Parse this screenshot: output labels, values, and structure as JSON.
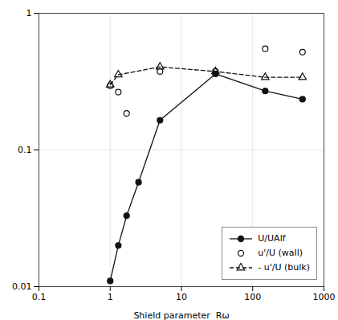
{
  "chart_data": {
    "type": "line",
    "xlabel": "Shield parameter  Rω",
    "log": true,
    "xlim": [
      0.1,
      1000
    ],
    "ylim": [
      0.01,
      1
    ],
    "xticks": [
      0.1,
      1,
      10,
      100,
      1000
    ],
    "yticks": [
      0.01,
      0.1,
      1
    ],
    "grid": true,
    "legend": "lower right",
    "series": [
      {
        "name": "U/UAlf",
        "type": "line",
        "color": "#111111",
        "marker": "circle",
        "line_style": "solid",
        "x": [
          1.0,
          1.3,
          1.7,
          2.5,
          5.0,
          30.0,
          150.0,
          500.0
        ],
        "values": [
          0.011,
          0.02,
          0.033,
          0.058,
          0.165,
          0.36,
          0.27,
          0.235
        ]
      },
      {
        "name": "u'/U (wall)",
        "type": "scatter",
        "color": "#111111",
        "marker": "open-circle",
        "line_style": "none",
        "x": [
          1.0,
          1.3,
          1.7,
          5.0,
          30.0,
          150.0,
          500.0
        ],
        "values": [
          0.295,
          0.265,
          0.185,
          0.375,
          0.375,
          0.55,
          0.52
        ]
      },
      {
        "name": "- u'/U (bulk)",
        "type": "line",
        "color": "#111111",
        "marker": "open-triangle",
        "line_style": "dashed",
        "x": [
          1.0,
          1.3,
          5.0,
          30.0,
          150.0,
          500.0
        ],
        "values": [
          0.3,
          0.355,
          0.405,
          0.375,
          0.34,
          0.34
        ]
      }
    ]
  }
}
